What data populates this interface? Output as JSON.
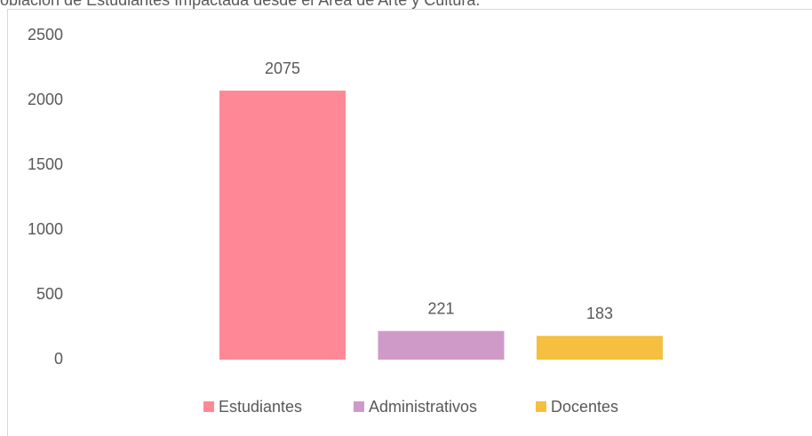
{
  "chart_data": {
    "type": "bar",
    "title": "oblación de Estudiantes Impactada desde el Área de Arte y Cultura.",
    "categories": [
      null
    ],
    "series": [
      {
        "name": "Estudiantes",
        "color": "#ff8896",
        "values": [
          2075
        ]
      },
      {
        "name": "Administrativos",
        "color": "#d09ac8",
        "values": [
          221
        ]
      },
      {
        "name": "Docentes",
        "color": "#f5bf3f",
        "values": [
          183
        ]
      }
    ],
    "ylim": [
      0,
      2500
    ],
    "yticks": [
      0,
      500,
      1000,
      1500,
      2000,
      2500
    ],
    "grid": false,
    "legend": "bottom"
  }
}
